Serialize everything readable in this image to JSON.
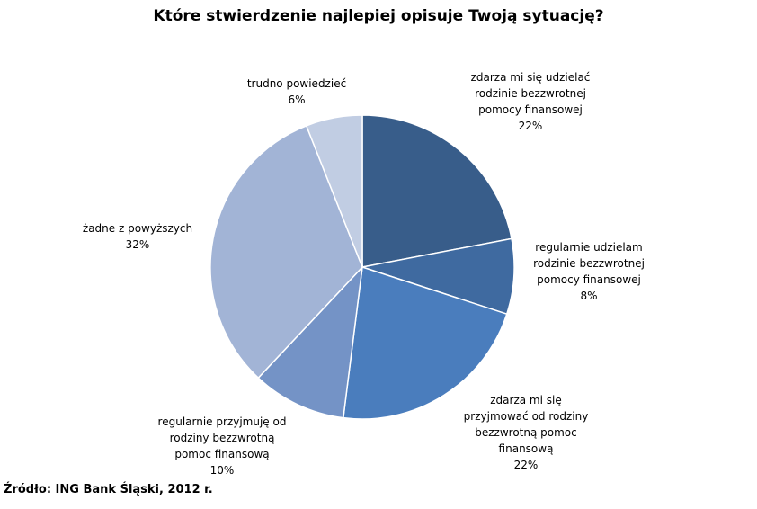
{
  "chart_data": {
    "type": "pie",
    "title": "Które stwierdzenie najlepiej opisuje Twoją sytuację?",
    "slices": [
      {
        "label_lines": [
          "zdarza mi się udzielać",
          "rodzinie bezzwrotnej",
          "pomocy finansowej"
        ],
        "value": 22,
        "value_label": "22%",
        "color": "#385d8a"
      },
      {
        "label_lines": [
          "regularnie udzielam",
          "rodzinie bezzwrotnej",
          "pomocy finansowej"
        ],
        "value": 8,
        "value_label": "8%",
        "color": "#3f6aa0"
      },
      {
        "label_lines": [
          "zdarza mi się",
          "przyjmować od rodziny",
          "bezzwrotną pomoc",
          "finansową"
        ],
        "value": 22,
        "value_label": "22%",
        "color": "#4a7dbd"
      },
      {
        "label_lines": [
          "regularnie przyjmuję od",
          "rodziny bezzwrotną",
          "pomoc finansową"
        ],
        "value": 10,
        "value_label": "10%",
        "color": "#7493c6"
      },
      {
        "label_lines": [
          "żadne z powyższych"
        ],
        "value": 32,
        "value_label": "32%",
        "color": "#a2b4d6"
      },
      {
        "label_lines": [
          "trudno powiedzieć"
        ],
        "value": 6,
        "value_label": "6%",
        "color": "#c1cde3"
      }
    ]
  },
  "source": "Źródło: ING Bank Śląski, 2012 r."
}
